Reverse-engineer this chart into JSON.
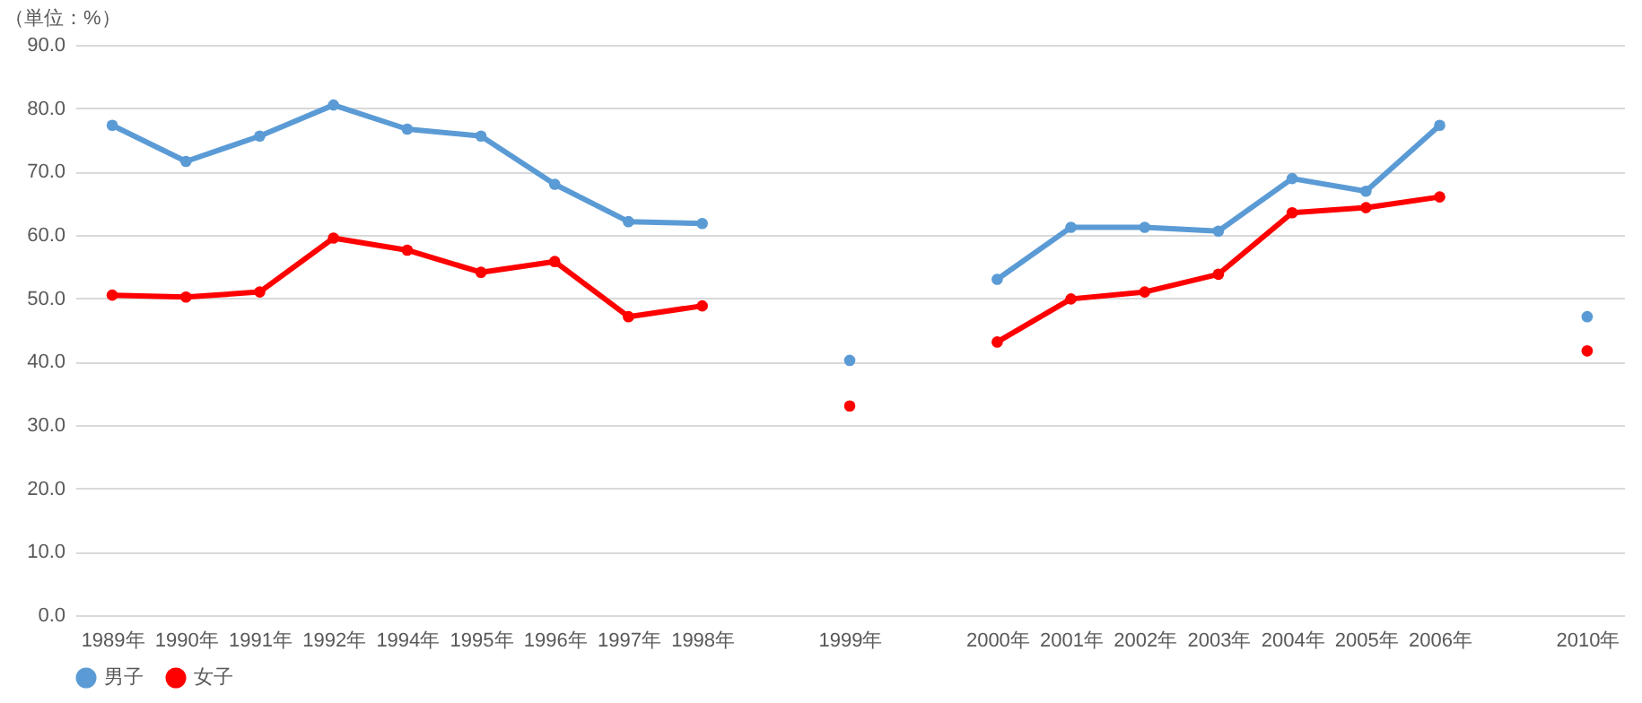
{
  "chart_data": {
    "type": "line",
    "ylabel": "（単位：%）",
    "categories": [
      "1989年",
      "1990年",
      "1991年",
      "1992年",
      "1994年",
      "1995年",
      "1996年",
      "1997年",
      "1998年",
      null,
      "1999年",
      null,
      "2000年",
      "2001年",
      "2002年",
      "2003年",
      "2004年",
      "2005年",
      "2006年",
      null,
      "2010年"
    ],
    "series": [
      {
        "name": "男子",
        "color": "#5b9bd5",
        "values": [
          77.3,
          71.6,
          75.6,
          80.5,
          76.7,
          75.6,
          68.0,
          62.1,
          61.8,
          null,
          40.2,
          null,
          53.0,
          61.2,
          61.2,
          60.6,
          68.9,
          66.9,
          77.3,
          null,
          47.1
        ]
      },
      {
        "name": "女子",
        "color": "#ff0000",
        "values": [
          50.5,
          50.2,
          51.0,
          59.5,
          57.6,
          54.1,
          55.8,
          47.1,
          48.8,
          null,
          33.0,
          null,
          43.1,
          49.9,
          51.0,
          53.8,
          63.5,
          64.3,
          66.0,
          null,
          41.7
        ]
      }
    ],
    "ylim": [
      0,
      90
    ],
    "yticks": [
      {
        "value": 0,
        "label": "0.0"
      },
      {
        "value": 10,
        "label": "10.0"
      },
      {
        "value": 20,
        "label": "20.0"
      },
      {
        "value": 30,
        "label": "30.0"
      },
      {
        "value": 40,
        "label": "40.0"
      },
      {
        "value": 50,
        "label": "50.0"
      },
      {
        "value": 60,
        "label": "60.0"
      },
      {
        "value": 70,
        "label": "70.0"
      },
      {
        "value": 80,
        "label": "80.0"
      },
      {
        "value": 90,
        "label": "90.0"
      }
    ],
    "grid": "y",
    "legend": "bottom",
    "marker": "circle",
    "line_style": "solid"
  }
}
